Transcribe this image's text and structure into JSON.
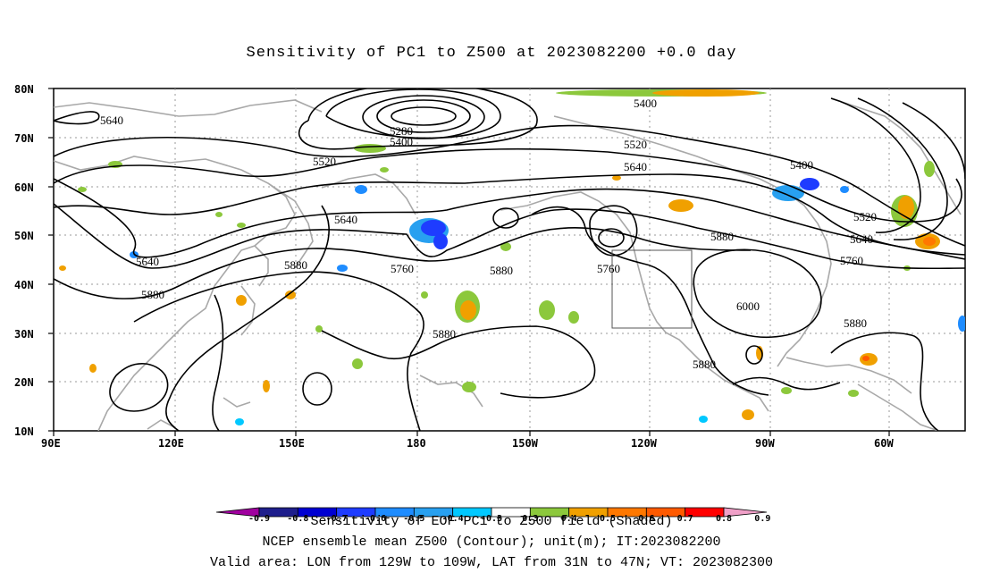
{
  "title": "Sensitivity of PC1 to Z500 at 2023082200 +0.0 day",
  "lat_labels": [
    "80N",
    "70N",
    "60N",
    "50N",
    "40N",
    "30N",
    "20N",
    "10N"
  ],
  "lon_labels": [
    "90E",
    "120E",
    "150E",
    "180",
    "150W",
    "120W",
    "90W",
    "60W"
  ],
  "contour_labels": [
    {
      "text": "5640",
      "ref": "c1"
    },
    {
      "text": "5280",
      "ref": "c2"
    },
    {
      "text": "5400",
      "ref": "c3"
    },
    {
      "text": "5400",
      "ref": "c4"
    },
    {
      "text": "5520",
      "ref": "c5"
    },
    {
      "text": "5520",
      "ref": "c6"
    },
    {
      "text": "5640",
      "ref": "c7"
    },
    {
      "text": "5400",
      "ref": "c8"
    },
    {
      "text": "5640",
      "ref": "c9"
    },
    {
      "text": "5520",
      "ref": "c10"
    },
    {
      "text": "5880",
      "ref": "c11"
    },
    {
      "text": "5640",
      "ref": "c12"
    },
    {
      "text": "5640",
      "ref": "c13"
    },
    {
      "text": "5880",
      "ref": "c14"
    },
    {
      "text": "5760",
      "ref": "c15"
    },
    {
      "text": "5880",
      "ref": "c16"
    },
    {
      "text": "5760",
      "ref": "c17"
    },
    {
      "text": "5760",
      "ref": "c18"
    },
    {
      "text": "6000",
      "ref": "c19"
    },
    {
      "text": "5880",
      "ref": "c20"
    },
    {
      "text": "5880",
      "ref": "c21"
    },
    {
      "text": "5880",
      "ref": "c22"
    },
    {
      "text": "5880",
      "ref": "c23"
    }
  ],
  "colorbar": {
    "ticks": [
      "-0.9",
      "-0.8",
      "-0.7",
      "-0.6",
      "-0.5",
      "-0.4",
      "-0.3",
      "0.3",
      "0.4",
      "0.5",
      "0.6",
      "0.7",
      "0.8",
      "0.9"
    ],
    "colors": [
      "#a0009f",
      "#1e1e8c",
      "#0000d2",
      "#1e3cff",
      "#1e8cff",
      "#28a0f0",
      "#00c8ff",
      "#ffffff",
      "#8cc83c",
      "#f0a000",
      "#ff7800",
      "#ff5a00",
      "#ff0000",
      "#f0a0c8"
    ]
  },
  "caption": {
    "line1": "Sensitivity of EOF PC1 to Z500 field (Shaded)",
    "line2": "NCEP ensemble mean Z500 (Contour); unit(m); IT:2023082200",
    "line3": "Valid area: LON from 129W to 109W, LAT from 31N to 47N; VT: 2023082300"
  },
  "valid_area": {
    "lon_min": -129,
    "lon_max": -109,
    "lat_min": 31,
    "lat_max": 47
  }
}
